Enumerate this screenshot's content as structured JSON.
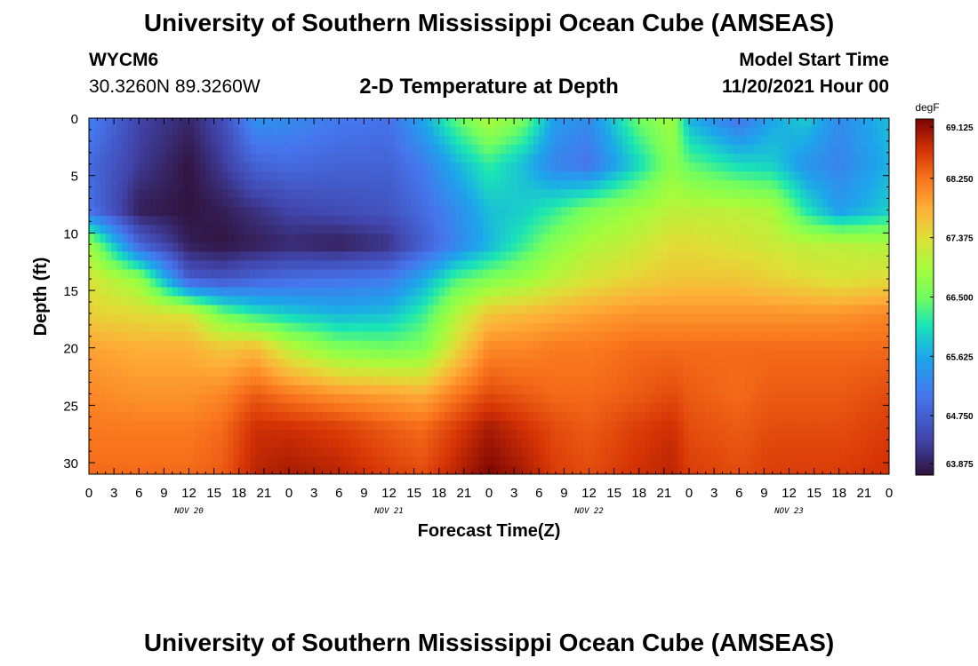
{
  "page": {
    "title": "University of Southern Mississippi Ocean Cube (AMSEAS)",
    "station": "WYCM6",
    "coordinates": "30.3260N  89.3260W",
    "subtitle": "2-D Temperature at Depth",
    "model_start_label": "Model Start Time",
    "model_start_value": "11/20/2021 Hour 00",
    "footer_title": "University of Southern Mississippi Ocean Cube (AMSEAS)"
  },
  "chart_data": {
    "type": "heatmap",
    "title": "2-D Temperature at Depth",
    "xlabel": "Forecast Time(Z)",
    "ylabel": "Depth (ft)",
    "x_tick_labels": [
      "0",
      "3",
      "6",
      "9",
      "12",
      "15",
      "18",
      "21",
      "0",
      "3",
      "6",
      "9",
      "12",
      "15",
      "18",
      "21",
      "0",
      "3",
      "6",
      "9",
      "12",
      "15",
      "18",
      "21",
      "0",
      "3",
      "6",
      "9",
      "12",
      "15",
      "18",
      "21",
      "0"
    ],
    "day_labels": [
      "NOV 20",
      "NOV 21",
      "NOV 22",
      "NOV 23"
    ],
    "x_range_hours": [
      0,
      96
    ],
    "y_ticks": [
      0,
      5,
      10,
      15,
      20,
      25,
      30
    ],
    "y_range_ft": [
      0,
      31
    ],
    "colorbar": {
      "unit": "degF",
      "min": 63.875,
      "max": 69.125,
      "tick_labels": [
        "69.125",
        "68.250",
        "67.375",
        "66.500",
        "65.625",
        "64.750",
        "63.875"
      ]
    },
    "temperature_grid": {
      "hours": [
        0,
        6,
        12,
        16,
        20,
        24,
        30,
        36,
        40,
        44,
        48,
        52,
        56,
        60,
        66,
        70,
        72,
        78,
        82,
        86,
        90,
        96
      ],
      "depths": [
        0,
        4,
        8,
        11,
        14,
        17,
        20,
        24,
        27,
        31
      ],
      "values": [
        [
          65.2,
          64.4,
          64.1,
          64.5,
          65.4,
          65.3,
          65.1,
          65.0,
          65.6,
          66.4,
          67.0,
          66.6,
          65.5,
          65.3,
          66.5,
          66.9,
          65.7,
          65.0,
          65.6,
          65.9,
          65.3,
          65.8
        ],
        [
          64.9,
          64.3,
          63.9,
          64.3,
          64.8,
          64.9,
          64.8,
          64.8,
          65.1,
          65.7,
          66.2,
          65.8,
          65.2,
          65.0,
          66.0,
          66.7,
          66.4,
          66.0,
          65.9,
          65.4,
          65.2,
          65.7
        ],
        [
          65.0,
          64.0,
          63.9,
          64.0,
          64.2,
          64.4,
          64.5,
          64.6,
          64.9,
          65.3,
          65.8,
          65.9,
          66.2,
          66.6,
          66.9,
          67.1,
          67.1,
          67.1,
          67.0,
          66.1,
          65.5,
          65.9
        ],
        [
          66.9,
          64.8,
          64.0,
          63.9,
          64.0,
          64.1,
          64.0,
          64.2,
          64.7,
          65.2,
          65.7,
          66.2,
          66.7,
          67.0,
          67.2,
          67.4,
          67.4,
          67.3,
          67.2,
          67.1,
          67.1,
          67.0
        ],
        [
          67.3,
          66.8,
          64.7,
          64.6,
          64.8,
          64.9,
          65.0,
          65.1,
          65.6,
          66.3,
          66.6,
          66.8,
          67.1,
          67.3,
          67.5,
          67.6,
          67.6,
          67.6,
          67.5,
          67.4,
          67.3,
          67.4
        ],
        [
          67.5,
          67.4,
          67.3,
          66.5,
          66.1,
          65.9,
          65.7,
          65.8,
          66.2,
          67.0,
          67.6,
          67.7,
          67.8,
          67.9,
          68.0,
          68.0,
          68.0,
          68.0,
          68.0,
          68.0,
          68.0,
          68.1
        ],
        [
          67.9,
          67.8,
          67.8,
          67.6,
          67.7,
          67.1,
          66.6,
          66.5,
          66.6,
          67.4,
          68.1,
          68.1,
          68.2,
          68.2,
          68.3,
          68.3,
          68.3,
          68.3,
          68.3,
          68.3,
          68.3,
          68.3
        ],
        [
          68.1,
          68.0,
          68.0,
          68.1,
          68.4,
          68.2,
          68.0,
          67.9,
          67.8,
          68.2,
          68.5,
          68.4,
          68.3,
          68.3,
          68.4,
          68.5,
          68.4,
          68.3,
          68.4,
          68.4,
          68.4,
          68.5
        ],
        [
          68.2,
          68.2,
          68.2,
          68.3,
          68.7,
          68.7,
          68.6,
          68.4,
          68.3,
          68.6,
          68.9,
          68.7,
          68.5,
          68.4,
          68.6,
          68.7,
          68.5,
          68.4,
          68.5,
          68.5,
          68.5,
          68.6
        ],
        [
          68.3,
          68.3,
          68.3,
          68.4,
          68.8,
          68.9,
          68.8,
          68.6,
          68.5,
          68.8,
          69.1,
          68.9,
          68.6,
          68.5,
          68.7,
          68.8,
          68.6,
          68.5,
          68.6,
          68.6,
          68.6,
          68.7
        ]
      ]
    }
  }
}
